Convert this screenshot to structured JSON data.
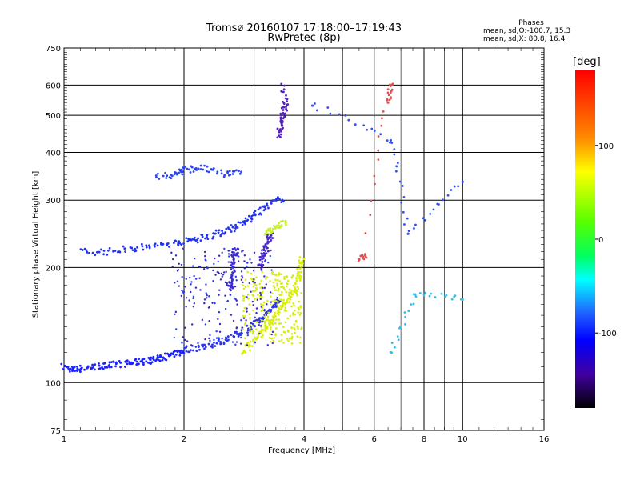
{
  "title_line1": "Tromsø 20160107 17:18:00–17:19:43",
  "title_line2": "RwPretec (8p)",
  "phases": {
    "title": "Phases",
    "line_o": "mean, sd,O:-100.7, 15.3",
    "line_x": "mean, sd,X:  80.8, 16.4"
  },
  "colorbar": {
    "label": "deg",
    "ticks": [
      "100",
      "0",
      "-100"
    ]
  },
  "chart_data": {
    "type": "scatter",
    "title": "Tromsø 20160107 17:18:00–17:19:43",
    "subtitle": "RwPretec (8p)",
    "xlabel": "Frequency [MHz]",
    "ylabel": "Stationary phase Virtual Height [km]",
    "xscale": "log",
    "yscale": "log",
    "xlim": [
      1,
      16
    ],
    "ylim": [
      75,
      750
    ],
    "xticks": [
      1,
      2,
      4,
      6,
      8,
      10,
      16
    ],
    "yticks": [
      75,
      100,
      200,
      300,
      400,
      500,
      600,
      750
    ],
    "grid": true,
    "colorbar": {
      "label": "deg",
      "range": [
        -180,
        180
      ],
      "ticks": [
        100,
        0,
        -100
      ]
    },
    "traces": [
      {
        "name": "",
        "color": "#1a22ff",
        "x_range": [
          1.0,
          2.0
        ],
        "points": [
          [
            1.0,
            110
          ],
          [
            1.05,
            108
          ],
          [
            1.1,
            109
          ],
          [
            1.2,
            110
          ],
          [
            1.3,
            111
          ],
          [
            1.4,
            112
          ],
          [
            1.5,
            113
          ],
          [
            1.6,
            114
          ],
          [
            1.7,
            115
          ],
          [
            1.8,
            117
          ],
          [
            1.9,
            119
          ],
          [
            2.0,
            121
          ]
        ]
      },
      {
        "name": "",
        "color": "#2a35e8",
        "points": [
          [
            2.0,
            122
          ],
          [
            2.2,
            124
          ],
          [
            2.4,
            127
          ],
          [
            2.6,
            131
          ],
          [
            2.8,
            136
          ],
          [
            3.0,
            142
          ],
          [
            3.2,
            150
          ],
          [
            3.4,
            160
          ],
          [
            3.5,
            166
          ]
        ]
      },
      {
        "name": "",
        "color": "#3a2ad0",
        "points": [
          [
            2.6,
            175
          ],
          [
            2.62,
            185
          ],
          [
            2.65,
            200
          ],
          [
            2.68,
            215
          ],
          [
            2.7,
            225
          ]
        ]
      },
      {
        "name": "",
        "color": "#4a2ac8",
        "points": [
          [
            3.1,
            200
          ],
          [
            3.15,
            215
          ],
          [
            3.2,
            225
          ],
          [
            3.25,
            235
          ],
          [
            3.3,
            245
          ]
        ]
      },
      {
        "name": "",
        "color": "#2233ee",
        "points": [
          [
            1.1,
            220
          ],
          [
            1.3,
            220
          ],
          [
            1.5,
            225
          ],
          [
            1.7,
            228
          ],
          [
            1.9,
            232
          ],
          [
            2.1,
            236
          ],
          [
            2.3,
            242
          ],
          [
            2.5,
            248
          ],
          [
            2.7,
            256
          ],
          [
            2.9,
            266
          ],
          [
            3.1,
            280
          ],
          [
            3.3,
            295
          ],
          [
            3.6,
            305
          ]
        ]
      },
      {
        "name": "",
        "color": "#2a45f0",
        "points": [
          [
            1.7,
            345
          ],
          [
            1.9,
            350
          ],
          [
            2.0,
            360
          ],
          [
            2.2,
            365
          ],
          [
            2.5,
            350
          ],
          [
            2.8,
            360
          ]
        ]
      },
      {
        "name": "",
        "color": "#5522bb",
        "points": [
          [
            3.45,
            440
          ],
          [
            3.5,
            470
          ],
          [
            3.55,
            500
          ],
          [
            3.6,
            530
          ],
          [
            3.55,
            600
          ]
        ]
      },
      {
        "name": "",
        "color": "#d9f000",
        "points": [
          [
            2.8,
            120
          ],
          [
            3.0,
            128
          ],
          [
            3.2,
            140
          ],
          [
            3.4,
            150
          ],
          [
            3.6,
            162
          ],
          [
            3.8,
            175
          ],
          [
            3.9,
            195
          ],
          [
            3.95,
            210
          ]
        ]
      },
      {
        "name": "",
        "color": "#c8f030",
        "points": [
          [
            3.2,
            245
          ],
          [
            3.4,
            255
          ],
          [
            3.6,
            262
          ]
        ]
      },
      {
        "name": "",
        "color": "#e05050",
        "points": [
          [
            5.5,
            210
          ],
          [
            5.7,
            215
          ],
          [
            6.6,
            600
          ],
          [
            6.5,
            540
          ]
        ]
      },
      {
        "name": "",
        "color": "#30c0f0",
        "points": [
          [
            6.6,
            120
          ],
          [
            7.6,
            170
          ],
          [
            10,
            165
          ]
        ]
      },
      {
        "name": "",
        "color": "#3050f0",
        "points": [
          [
            4.2,
            530
          ],
          [
            6.6,
            430
          ],
          [
            7.3,
            245
          ],
          [
            10,
            335
          ]
        ]
      }
    ]
  }
}
